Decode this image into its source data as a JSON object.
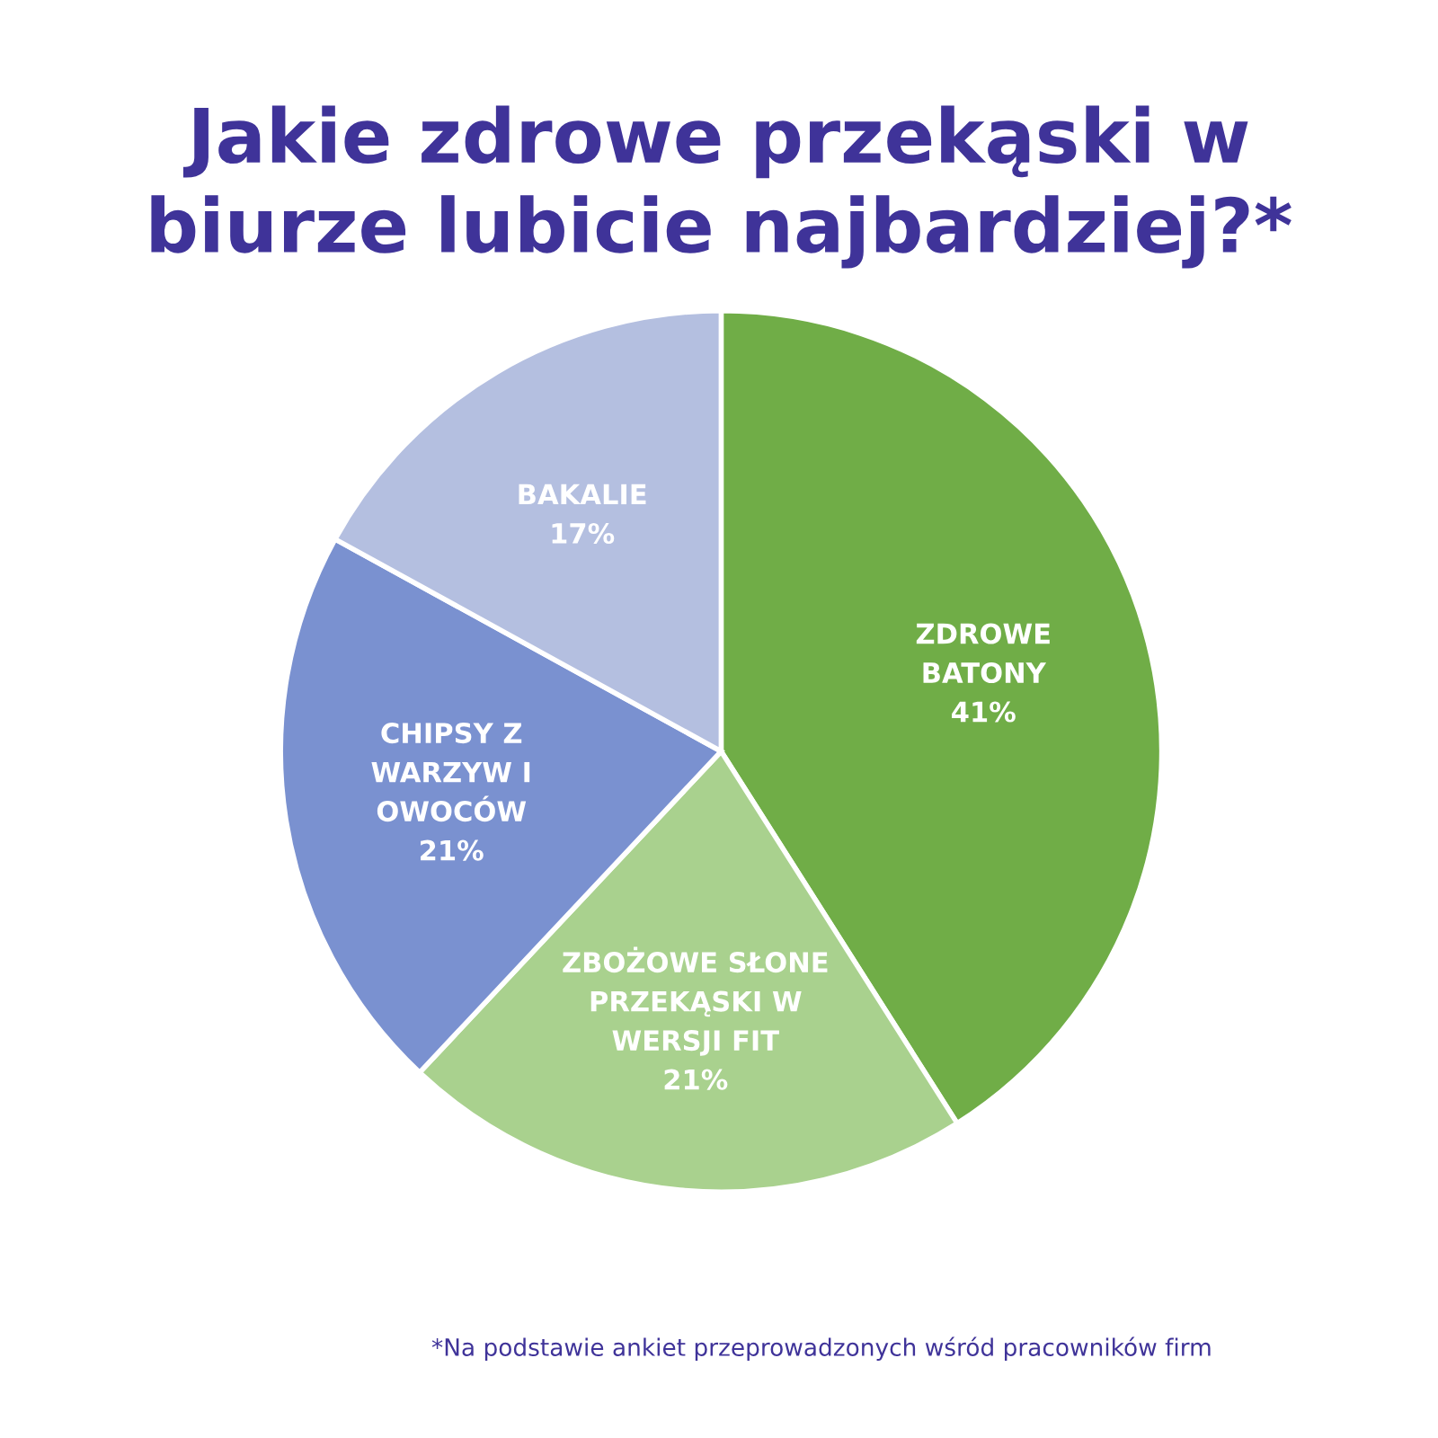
{
  "chart_data": {
    "type": "pie",
    "title": "Jakie zdrowe przekąski w\nbiurze lubicie najbardziej?*",
    "categories": [
      "ZDROWE\nBATONY",
      "ZBOŻOWE SŁONE\nPRZEKĄSKI W\nWERSJI FIT",
      "CHIPSY Z\nWARZYW I\nOWOCÓW",
      "BAKALIE"
    ],
    "values": [
      41,
      21,
      21,
      17
    ],
    "colors": [
      "#70ad47",
      "#a9d18e",
      "#7a91d0",
      "#b4bfe0"
    ],
    "value_labels": [
      "41%",
      "21%",
      "21%",
      "17%"
    ],
    "annotations": [
      "*Na podstawie ankiet przeprowadzonych wśród pracowników firm"
    ]
  }
}
